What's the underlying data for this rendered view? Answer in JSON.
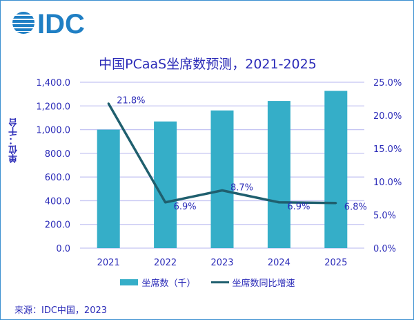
{
  "logo_text": "IDC",
  "chart_data": {
    "type": "bar+line",
    "title": "中国PCaaS坐席数预测，2021-2025",
    "ylabel": "单位：千台",
    "categories": [
      "2021",
      "2022",
      "2023",
      "2024",
      "2025"
    ],
    "series": [
      {
        "name": "坐席数（千）",
        "type": "bar",
        "axis": "left",
        "values": [
          1000,
          1069,
          1162,
          1242,
          1327
        ],
        "color": "#35aec8"
      },
      {
        "name": "坐席数同比增速",
        "type": "line",
        "axis": "right",
        "values": [
          21.8,
          6.9,
          8.7,
          6.9,
          6.8
        ],
        "labels": [
          "21.8%",
          "6.9%",
          "8.7%",
          "6.9%",
          "6.8%"
        ],
        "color": "#1f5f6e"
      }
    ],
    "ylim": [
      0,
      1400
    ],
    "yticks": [
      "0.0",
      "200.0",
      "400.0",
      "600.0",
      "800.0",
      "1,000.0",
      "1,200.0",
      "1,400.0"
    ],
    "y2lim": [
      0,
      25
    ],
    "y2ticks": [
      "0.0%",
      "5.0%",
      "10.0%",
      "15.0%",
      "20.0%",
      "25.0%"
    ],
    "grid": true,
    "legend": "bottom"
  },
  "source": "来源：IDC中国，2023"
}
